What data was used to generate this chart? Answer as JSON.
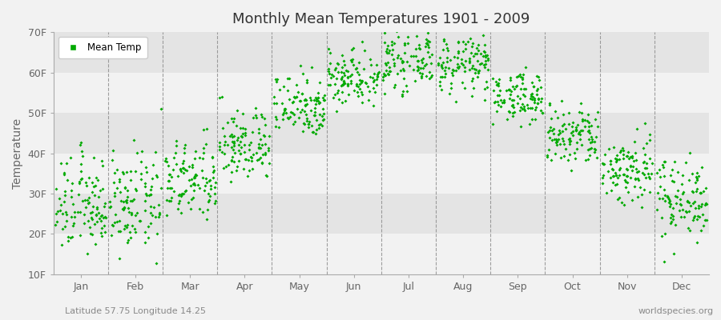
{
  "title": "Monthly Mean Temperatures 1901 - 2009",
  "ylabel": "Temperature",
  "subtitle_left": "Latitude 57.75 Longitude 14.25",
  "subtitle_right": "worldspecies.org",
  "ytick_labels": [
    "10F",
    "20F",
    "30F",
    "40F",
    "50F",
    "60F",
    "70F"
  ],
  "ytick_values": [
    10,
    20,
    30,
    40,
    50,
    60,
    70
  ],
  "ylim": [
    10,
    70
  ],
  "months": [
    "Jan",
    "Feb",
    "Mar",
    "Apr",
    "May",
    "Jun",
    "Jul",
    "Aug",
    "Sep",
    "Oct",
    "Nov",
    "Dec"
  ],
  "month_centers": [
    0.5,
    1.5,
    2.5,
    3.5,
    4.5,
    5.5,
    6.5,
    7.5,
    8.5,
    9.5,
    10.5,
    11.5
  ],
  "xlim": [
    0,
    12
  ],
  "dot_color": "#00aa00",
  "dot_size": 4,
  "background_color": "#f2f2f2",
  "plot_bg_light": "#f2f2f2",
  "plot_bg_dark": "#e4e4e4",
  "legend_label": "Mean Temp",
  "num_years": 109,
  "mean_temps_F": [
    27.0,
    27.5,
    33.0,
    42.0,
    52.0,
    59.0,
    63.0,
    62.0,
    54.0,
    44.0,
    36.0,
    29.0
  ],
  "std_temps_F": [
    6.0,
    6.0,
    5.0,
    4.5,
    4.0,
    3.5,
    3.5,
    3.5,
    3.0,
    4.0,
    4.5,
    5.0
  ]
}
